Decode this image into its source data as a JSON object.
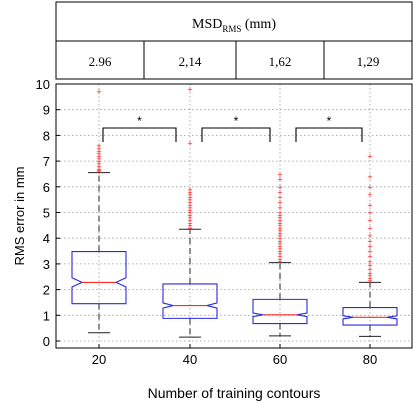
{
  "chart_data": {
    "type": "box",
    "table": {
      "header_main": "MSD",
      "header_sub": "RMS",
      "header_unit": " (mm)",
      "values": [
        "2.96",
        "2,14",
        "1,62",
        "1,29"
      ]
    },
    "xlabel": "Number of training contours",
    "ylabel": "RMS error in mm",
    "ylim": [
      0,
      10
    ],
    "yticks": [
      0,
      1,
      2,
      3,
      4,
      5,
      6,
      7,
      8,
      9,
      10
    ],
    "grid": true,
    "categories": [
      "20",
      "40",
      "60",
      "80"
    ],
    "boxes": [
      {
        "whisker_low": 0.32,
        "q1": 1.45,
        "notch_low": 2.1,
        "median": 2.28,
        "notch_high": 2.46,
        "q3": 3.48,
        "whisker_high": 6.55,
        "outliers": [
          6.6,
          6.65,
          6.7,
          6.8,
          6.9,
          7.0,
          7.1,
          7.2,
          7.3,
          7.4,
          7.5,
          7.6,
          9.7
        ]
      },
      {
        "whisker_low": 0.15,
        "q1": 0.88,
        "notch_low": 1.28,
        "median": 1.38,
        "notch_high": 1.48,
        "q3": 2.22,
        "whisker_high": 4.35,
        "outliers": [
          4.4,
          4.5,
          4.6,
          4.7,
          4.8,
          4.9,
          5.0,
          5.1,
          5.2,
          5.3,
          5.4,
          5.5,
          5.6,
          5.7,
          5.8,
          5.9,
          7.7,
          9.8
        ]
      },
      {
        "whisker_low": 0.2,
        "q1": 0.68,
        "notch_low": 0.95,
        "median": 1.02,
        "notch_high": 1.09,
        "q3": 1.62,
        "whisker_high": 3.05,
        "outliers": [
          3.1,
          3.2,
          3.3,
          3.4,
          3.5,
          3.6,
          3.7,
          3.8,
          3.9,
          4.0,
          4.1,
          4.2,
          4.3,
          4.4,
          4.5,
          4.6,
          4.7,
          4.8,
          4.9,
          5.0,
          5.2,
          5.4,
          5.6,
          5.8,
          6.0,
          6.3,
          6.5
        ]
      },
      {
        "whisker_low": 0.18,
        "q1": 0.62,
        "notch_low": 0.86,
        "median": 0.92,
        "notch_high": 0.98,
        "q3": 1.3,
        "whisker_high": 2.28,
        "outliers": [
          2.35,
          2.45,
          2.55,
          2.65,
          2.8,
          2.95,
          3.1,
          3.3,
          3.5,
          3.7,
          3.9,
          4.1,
          4.4,
          4.7,
          5.0,
          5.3,
          5.7,
          6.0,
          6.4,
          7.2
        ]
      }
    ],
    "significance": [
      {
        "from": "20",
        "to": "40",
        "label": "*"
      },
      {
        "from": "40",
        "to": "60",
        "label": "*"
      },
      {
        "from": "60",
        "to": "80",
        "label": "*"
      }
    ],
    "colors": {
      "box": "#2a2ae0",
      "median": "#ff2a2a",
      "outlier": "#ff2a2a",
      "whisker": "#222222",
      "grid": "#9a9a9a",
      "axis": "#000000"
    }
  }
}
